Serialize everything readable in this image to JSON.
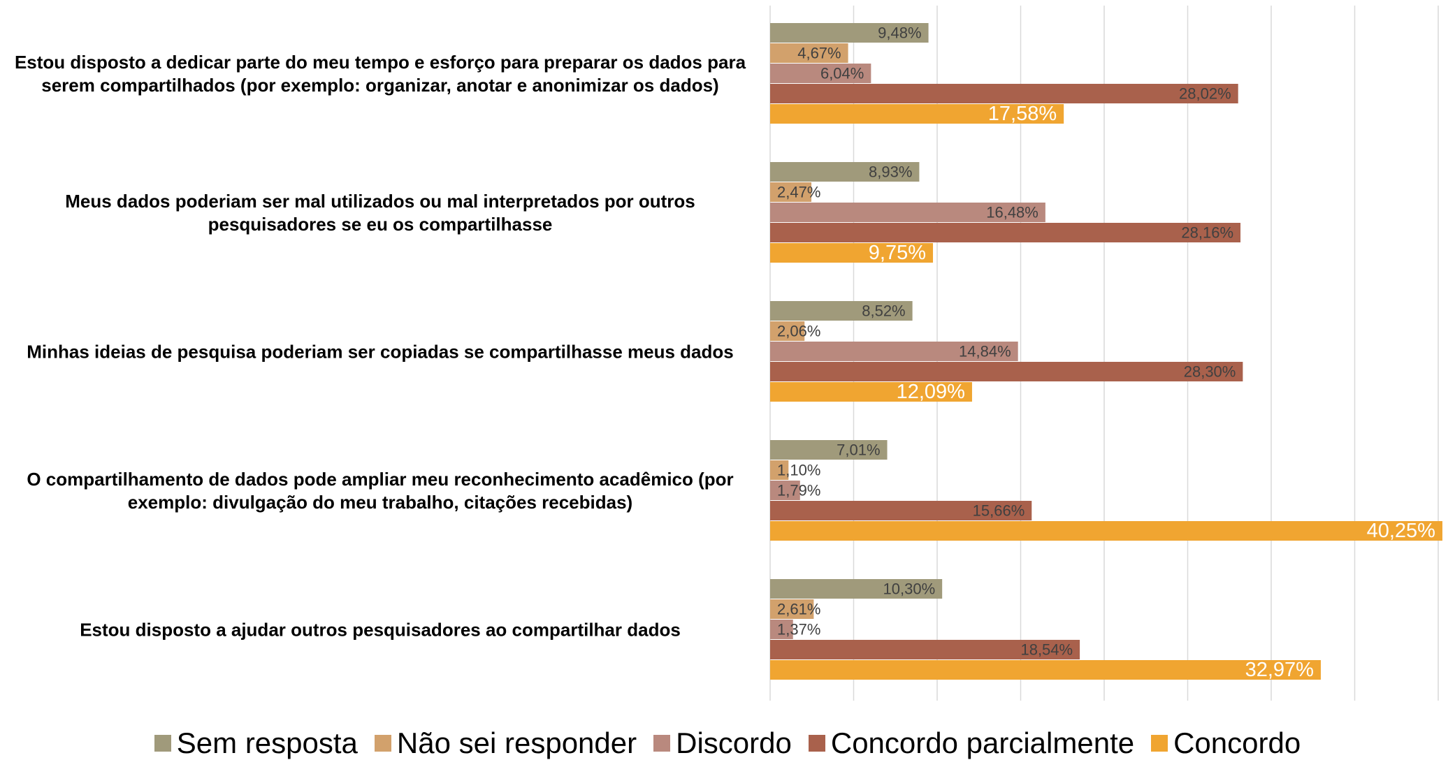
{
  "chart_data": {
    "type": "bar",
    "orientation": "horizontal",
    "categories": [
      "Estou disposto a dedicar parte do meu tempo e esforço para preparar os dados para serem compartilhados (por exemplo: organizar, anotar e anonimizar os dados)",
      "Meus dados poderiam ser mal utilizados ou mal interpretados por outros pesquisadores se eu os compartilhasse",
      "Minhas ideias de pesquisa poderiam ser copiadas se compartilhasse meus dados",
      "O compartilhamento de dados pode ampliar meu reconhecimento acadêmico (por exemplo: divulgação do meu trabalho, citações recebidas)",
      "Estou disposto a ajudar outros pesquisadores ao compartilhar dados"
    ],
    "series": [
      {
        "name": "Sem resposta",
        "color": "#a09a7b",
        "values": [
          9.48,
          8.93,
          8.52,
          7.01,
          10.3
        ],
        "value_labels": [
          "9,48%",
          "8,93%",
          "8,52%",
          "7,01%",
          "10,30%"
        ]
      },
      {
        "name": "Não sei responder",
        "color": "#d2a16c",
        "values": [
          4.67,
          2.47,
          2.06,
          1.1,
          2.61
        ],
        "value_labels": [
          "4,67%",
          "2,47%",
          "2,06%",
          "1,10%",
          "2,61%"
        ]
      },
      {
        "name": "Discordo",
        "color": "#b9897e",
        "values": [
          6.04,
          16.48,
          14.84,
          1.79,
          1.37
        ],
        "value_labels": [
          "6,04%",
          "16,48%",
          "14,84%",
          "1,79%",
          "1,37%"
        ]
      },
      {
        "name": "Concordo parcialmente",
        "color": "#a9614c",
        "values": [
          28.02,
          28.16,
          28.3,
          15.66,
          18.54
        ],
        "value_labels": [
          "28,02%",
          "28,16%",
          "28,30%",
          "15,66%",
          "18,54%"
        ]
      },
      {
        "name": "Concordo",
        "color": "#f0a531",
        "values": [
          17.58,
          9.75,
          12.09,
          40.25,
          32.97
        ],
        "value_labels": [
          "17,58%",
          "9,75%",
          "12,09%",
          "40,25%",
          "32,97%"
        ]
      }
    ],
    "xlim": [
      0,
      40
    ],
    "xticks": [
      0,
      5,
      10,
      15,
      20,
      25,
      30,
      35,
      40
    ],
    "grid": true,
    "legend": "bottom"
  }
}
